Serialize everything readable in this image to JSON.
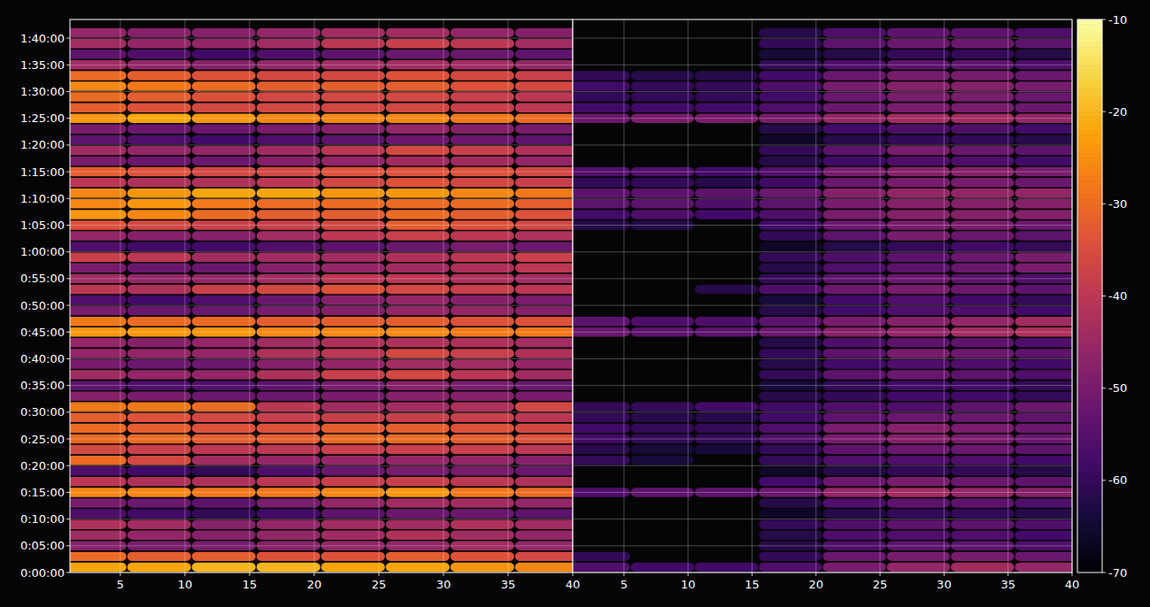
{
  "chart_data": [
    {
      "type": "heatmap",
      "grid": true,
      "tick_labels": true,
      "xlim": [
        1.1,
        40
      ],
      "xticks": [
        5,
        10,
        15,
        20,
        25,
        30,
        35,
        40
      ],
      "ylim": [
        0,
        6210
      ],
      "yticks": [
        {
          "value": 0,
          "label": "0:00:00"
        },
        {
          "value": 300,
          "label": "0:05:00"
        },
        {
          "value": 600,
          "label": "0:10:00"
        },
        {
          "value": 900,
          "label": "0:15:00"
        },
        {
          "value": 1200,
          "label": "0:20:00"
        },
        {
          "value": 1500,
          "label": "0:25:00"
        },
        {
          "value": 1800,
          "label": "0:30:00"
        },
        {
          "value": 2100,
          "label": "0:35:00"
        },
        {
          "value": 2400,
          "label": "0:40:00"
        },
        {
          "value": 2700,
          "label": "0:45:00"
        },
        {
          "value": 3000,
          "label": "0:50:00"
        },
        {
          "value": 3300,
          "label": "0:55:00"
        },
        {
          "value": 3600,
          "label": "1:00:00"
        },
        {
          "value": 3900,
          "label": "1:05:00"
        },
        {
          "value": 4200,
          "label": "1:10:00"
        },
        {
          "value": 4500,
          "label": "1:15:00"
        },
        {
          "value": 4800,
          "label": "1:20:00"
        },
        {
          "value": 5100,
          "label": "1:25:00"
        },
        {
          "value": 5400,
          "label": "1:30:00"
        },
        {
          "value": 5700,
          "label": "1:35:00"
        },
        {
          "value": 6000,
          "label": "1:40:00"
        }
      ],
      "x": [
        3,
        8,
        13,
        18,
        23,
        28,
        33,
        38
      ],
      "y": [
        0,
        120,
        240,
        360,
        480,
        600,
        720,
        840,
        960,
        1080,
        1200,
        1320,
        1440,
        1560,
        1680,
        1800,
        1920,
        2040,
        2160,
        2280,
        2400,
        2520,
        2640,
        2760,
        2880,
        3000,
        3120,
        3240,
        3360,
        3480,
        3600,
        3720,
        3840,
        3960,
        4080,
        4200,
        4320,
        4440,
        4560,
        4680,
        4800,
        4920,
        5040,
        5160,
        5280,
        5400,
        5520,
        5640,
        5760,
        5880,
        6000
      ],
      "cells": [
        [
          -22,
          -22,
          -20,
          -20,
          -22,
          -22,
          -24,
          -26
        ],
        [
          -30,
          -32,
          -32,
          -34,
          -34,
          -32,
          -34,
          -36
        ],
        [
          -48,
          -50,
          -50,
          -48,
          -46,
          -46,
          -44,
          -46
        ],
        [
          -44,
          -46,
          -48,
          -46,
          -44,
          -42,
          -44,
          -46
        ],
        [
          -42,
          -44,
          -48,
          -46,
          -44,
          -44,
          -42,
          -44
        ],
        [
          -56,
          -58,
          -60,
          -58,
          -54,
          -52,
          -52,
          -54
        ],
        [
          -50,
          -52,
          -54,
          -50,
          -46,
          -44,
          -44,
          -46
        ],
        [
          -26,
          -26,
          -28,
          -28,
          -26,
          -24,
          -28,
          -30
        ],
        [
          -40,
          -42,
          -42,
          -40,
          -38,
          -38,
          -40,
          -42
        ],
        [
          -56,
          -58,
          -60,
          -56,
          -52,
          -50,
          -50,
          -52
        ],
        [
          -30,
          -36,
          -44,
          -46,
          -46,
          -46,
          -46,
          -48
        ],
        [
          -36,
          -38,
          -40,
          -40,
          -38,
          -38,
          -38,
          -40
        ],
        [
          -30,
          -30,
          -32,
          -32,
          -30,
          -30,
          -32,
          -34
        ],
        [
          -30,
          -32,
          -34,
          -34,
          -32,
          -32,
          -34,
          -36
        ],
        [
          -32,
          -34,
          -36,
          -38,
          -38,
          -38,
          -38,
          -40
        ],
        [
          -28,
          -28,
          -30,
          -40,
          -44,
          -44,
          -42,
          -36
        ],
        [
          -48,
          -50,
          -52,
          -52,
          -50,
          -48,
          -48,
          -50
        ],
        [
          -54,
          -56,
          -56,
          -54,
          -50,
          -48,
          -50,
          -52
        ],
        [
          -44,
          -46,
          -46,
          -42,
          -38,
          -36,
          -40,
          -44
        ],
        [
          -50,
          -52,
          -52,
          -48,
          -46,
          -44,
          -44,
          -46
        ],
        [
          -46,
          -46,
          -46,
          -42,
          -40,
          -36,
          -38,
          -42
        ],
        [
          -46,
          -48,
          -46,
          -44,
          -42,
          -42,
          -42,
          -44
        ],
        [
          -24,
          -24,
          -24,
          -26,
          -26,
          -26,
          -28,
          -28
        ],
        [
          -28,
          -30,
          -30,
          -32,
          -32,
          -32,
          -34,
          -34
        ],
        [
          -50,
          -52,
          -52,
          -50,
          -48,
          -46,
          -46,
          -48
        ],
        [
          -56,
          -58,
          -56,
          -52,
          -48,
          -46,
          -48,
          -50
        ],
        [
          -40,
          -42,
          -38,
          -36,
          -34,
          -36,
          -38,
          -40
        ],
        [
          -44,
          -46,
          -46,
          -44,
          -40,
          -40,
          -42,
          -44
        ],
        [
          -50,
          -52,
          -52,
          -48,
          -46,
          -44,
          -42,
          -40
        ],
        [
          -38,
          -40,
          -44,
          -44,
          -44,
          -42,
          -40,
          -38
        ],
        [
          -56,
          -58,
          -58,
          -56,
          -54,
          -52,
          -50,
          -52
        ],
        [
          -46,
          -48,
          -48,
          -44,
          -40,
          -38,
          -40,
          -42
        ],
        [
          -34,
          -36,
          -38,
          -38,
          -36,
          -32,
          -34,
          -36
        ],
        [
          -24,
          -26,
          -30,
          -32,
          -32,
          -30,
          -32,
          -34
        ],
        [
          -26,
          -24,
          -28,
          -30,
          -30,
          -30,
          -30,
          -32
        ],
        [
          -26,
          -24,
          -22,
          -22,
          -24,
          -24,
          -26,
          -28
        ],
        [
          -40,
          -42,
          -42,
          -40,
          -36,
          -34,
          -36,
          -38
        ],
        [
          -32,
          -34,
          -36,
          -36,
          -34,
          -34,
          -34,
          -36
        ],
        [
          -50,
          -52,
          -52,
          -48,
          -46,
          -44,
          -44,
          -46
        ],
        [
          -44,
          -46,
          -46,
          -44,
          -40,
          -36,
          -38,
          -42
        ],
        [
          -54,
          -56,
          -58,
          -56,
          -54,
          -52,
          -52,
          -54
        ],
        [
          -50,
          -52,
          -52,
          -50,
          -48,
          -46,
          -48,
          -50
        ],
        [
          -24,
          -22,
          -24,
          -26,
          -26,
          -26,
          -28,
          -30
        ],
        [
          -32,
          -34,
          -36,
          -36,
          -36,
          -36,
          -38,
          -40
        ],
        [
          -30,
          -32,
          -34,
          -36,
          -36,
          -36,
          -38,
          -40
        ],
        [
          -26,
          -28,
          -30,
          -32,
          -32,
          -32,
          -34,
          -36
        ],
        [
          -30,
          -32,
          -34,
          -36,
          -36,
          -34,
          -36,
          -38
        ],
        [
          -44,
          -46,
          -48,
          -46,
          -44,
          -44,
          -44,
          -46
        ],
        [
          -54,
          -56,
          -58,
          -56,
          -54,
          -52,
          -52,
          -54
        ],
        [
          -44,
          -46,
          -46,
          -44,
          -40,
          -38,
          -40,
          -44
        ],
        [
          -46,
          -48,
          -48,
          -46,
          -44,
          -44,
          -46,
          -48
        ]
      ]
    },
    {
      "type": "heatmap",
      "grid": true,
      "tick_labels": "x",
      "xlim": [
        1,
        40
      ],
      "xticks": [
        5,
        10,
        15,
        20,
        25,
        30,
        35,
        40
      ],
      "ylim": [
        0,
        6210
      ],
      "yticks": [
        0,
        300,
        600,
        900,
        1200,
        1500,
        1800,
        2100,
        2400,
        2700,
        3000,
        3300,
        3600,
        3900,
        4200,
        4500,
        4800,
        5100,
        5400,
        5700,
        6000
      ],
      "x": [
        3,
        8,
        13,
        18,
        23,
        28,
        33,
        38
      ],
      "y": [
        0,
        120,
        240,
        360,
        480,
        600,
        720,
        840,
        960,
        1080,
        1200,
        1320,
        1440,
        1560,
        1680,
        1800,
        1920,
        2040,
        2160,
        2280,
        2400,
        2520,
        2640,
        2760,
        2880,
        3000,
        3120,
        3240,
        3360,
        3480,
        3600,
        3720,
        3840,
        3960,
        4080,
        4200,
        4320,
        4440,
        4560,
        4680,
        4800,
        4920,
        5040,
        5160,
        5280,
        5400,
        5520,
        5640,
        5760,
        5880,
        6000
      ],
      "cells": [
        [
          -56,
          -58,
          -58,
          -56,
          -50,
          -46,
          -44,
          -46
        ],
        [
          -60,
          null,
          null,
          -60,
          -52,
          -50,
          -50,
          -52
        ],
        [
          null,
          null,
          null,
          -62,
          -56,
          -54,
          -54,
          -56
        ],
        [
          null,
          null,
          null,
          -62,
          -56,
          -56,
          -56,
          -58
        ],
        [
          null,
          null,
          null,
          -60,
          -56,
          -54,
          -54,
          -56
        ],
        [
          null,
          null,
          null,
          -66,
          -62,
          -60,
          -60,
          -62
        ],
        [
          null,
          null,
          null,
          -62,
          -56,
          -54,
          -54,
          -56
        ],
        [
          -56,
          -54,
          -54,
          -52,
          -46,
          -44,
          -46,
          -48
        ],
        [
          null,
          null,
          null,
          -58,
          -52,
          -50,
          -52,
          -54
        ],
        [
          null,
          null,
          null,
          -66,
          -62,
          -60,
          -60,
          -62
        ],
        [
          -60,
          -64,
          null,
          -60,
          -56,
          -56,
          -56,
          -58
        ],
        [
          -62,
          -64,
          -64,
          -60,
          -54,
          -52,
          -52,
          -54
        ],
        [
          -58,
          -60,
          -60,
          -56,
          -50,
          -48,
          -50,
          -52
        ],
        [
          -58,
          -60,
          -60,
          -56,
          -50,
          -48,
          -50,
          -52
        ],
        [
          -60,
          -62,
          -62,
          -58,
          -54,
          -52,
          -52,
          -54
        ],
        [
          -60,
          -60,
          -58,
          -58,
          -56,
          -56,
          -54,
          -52
        ],
        [
          null,
          null,
          null,
          -62,
          -60,
          -58,
          -58,
          -60
        ],
        [
          null,
          null,
          null,
          -64,
          -60,
          -58,
          -58,
          -60
        ],
        [
          null,
          null,
          null,
          -60,
          -54,
          -52,
          -54,
          -56
        ],
        [
          null,
          null,
          null,
          -62,
          -58,
          -56,
          -56,
          -58
        ],
        [
          null,
          null,
          null,
          -60,
          -54,
          -50,
          -52,
          -54
        ],
        [
          null,
          null,
          null,
          -62,
          -56,
          -54,
          -54,
          -56
        ],
        [
          -52,
          -54,
          -54,
          -52,
          -48,
          -46,
          -44,
          -42
        ],
        [
          -54,
          -56,
          -56,
          -54,
          -50,
          -48,
          -46,
          -44
        ],
        [
          null,
          null,
          null,
          -62,
          -58,
          -56,
          -56,
          -58
        ],
        [
          null,
          null,
          null,
          -64,
          -58,
          -56,
          -58,
          -60
        ],
        [
          null,
          null,
          -62,
          -56,
          -52,
          -50,
          -52,
          -54
        ],
        [
          null,
          null,
          null,
          -60,
          -54,
          -52,
          -54,
          -56
        ],
        [
          null,
          null,
          null,
          -62,
          -56,
          -54,
          -52,
          -50
        ],
        [
          null,
          null,
          null,
          -60,
          -56,
          -54,
          -52,
          -50
        ],
        [
          null,
          null,
          null,
          -66,
          -62,
          -60,
          -58,
          -60
        ],
        [
          null,
          null,
          null,
          -60,
          -54,
          -50,
          -52,
          -54
        ],
        [
          -62,
          -62,
          null,
          -58,
          -52,
          -50,
          -50,
          -52
        ],
        [
          -58,
          -56,
          -58,
          -56,
          -50,
          -48,
          -48,
          -48
        ],
        [
          -54,
          -54,
          -56,
          -54,
          -50,
          -48,
          -48,
          -48
        ],
        [
          -54,
          -54,
          -54,
          -52,
          -48,
          -46,
          -46,
          -46
        ],
        [
          -60,
          -60,
          -62,
          -58,
          -52,
          -50,
          -50,
          -52
        ],
        [
          -56,
          -56,
          -58,
          -56,
          -50,
          -48,
          -48,
          -50
        ],
        [
          null,
          null,
          null,
          -62,
          -58,
          -56,
          -56,
          -58
        ],
        [
          null,
          null,
          null,
          -60,
          -54,
          -50,
          -52,
          -54
        ],
        [
          null,
          null,
          null,
          -66,
          -62,
          -60,
          -60,
          -62
        ],
        [
          null,
          null,
          null,
          -62,
          -58,
          -56,
          -56,
          -58
        ],
        [
          -52,
          -50,
          -50,
          -50,
          -46,
          -44,
          -44,
          -46
        ],
        [
          -58,
          -58,
          -58,
          -56,
          -52,
          -50,
          -50,
          -52
        ],
        [
          -60,
          -60,
          -60,
          -58,
          -52,
          -50,
          -50,
          -52
        ],
        [
          -58,
          -60,
          -60,
          -56,
          -50,
          -48,
          -48,
          -50
        ],
        [
          -60,
          -62,
          -62,
          -58,
          -52,
          -50,
          -50,
          -52
        ],
        [
          null,
          null,
          null,
          -60,
          -56,
          -54,
          -54,
          -56
        ],
        [
          null,
          null,
          null,
          -64,
          -62,
          -60,
          -60,
          -62
        ],
        [
          null,
          null,
          null,
          -60,
          -54,
          -52,
          -52,
          -54
        ],
        [
          null,
          null,
          null,
          -62,
          -56,
          -54,
          -54,
          -56
        ]
      ],
      "colorbar": {
        "range": [
          -70,
          -10
        ],
        "ticks": [
          -10,
          -20,
          -30,
          -40,
          -50,
          -60,
          -70
        ]
      }
    }
  ]
}
